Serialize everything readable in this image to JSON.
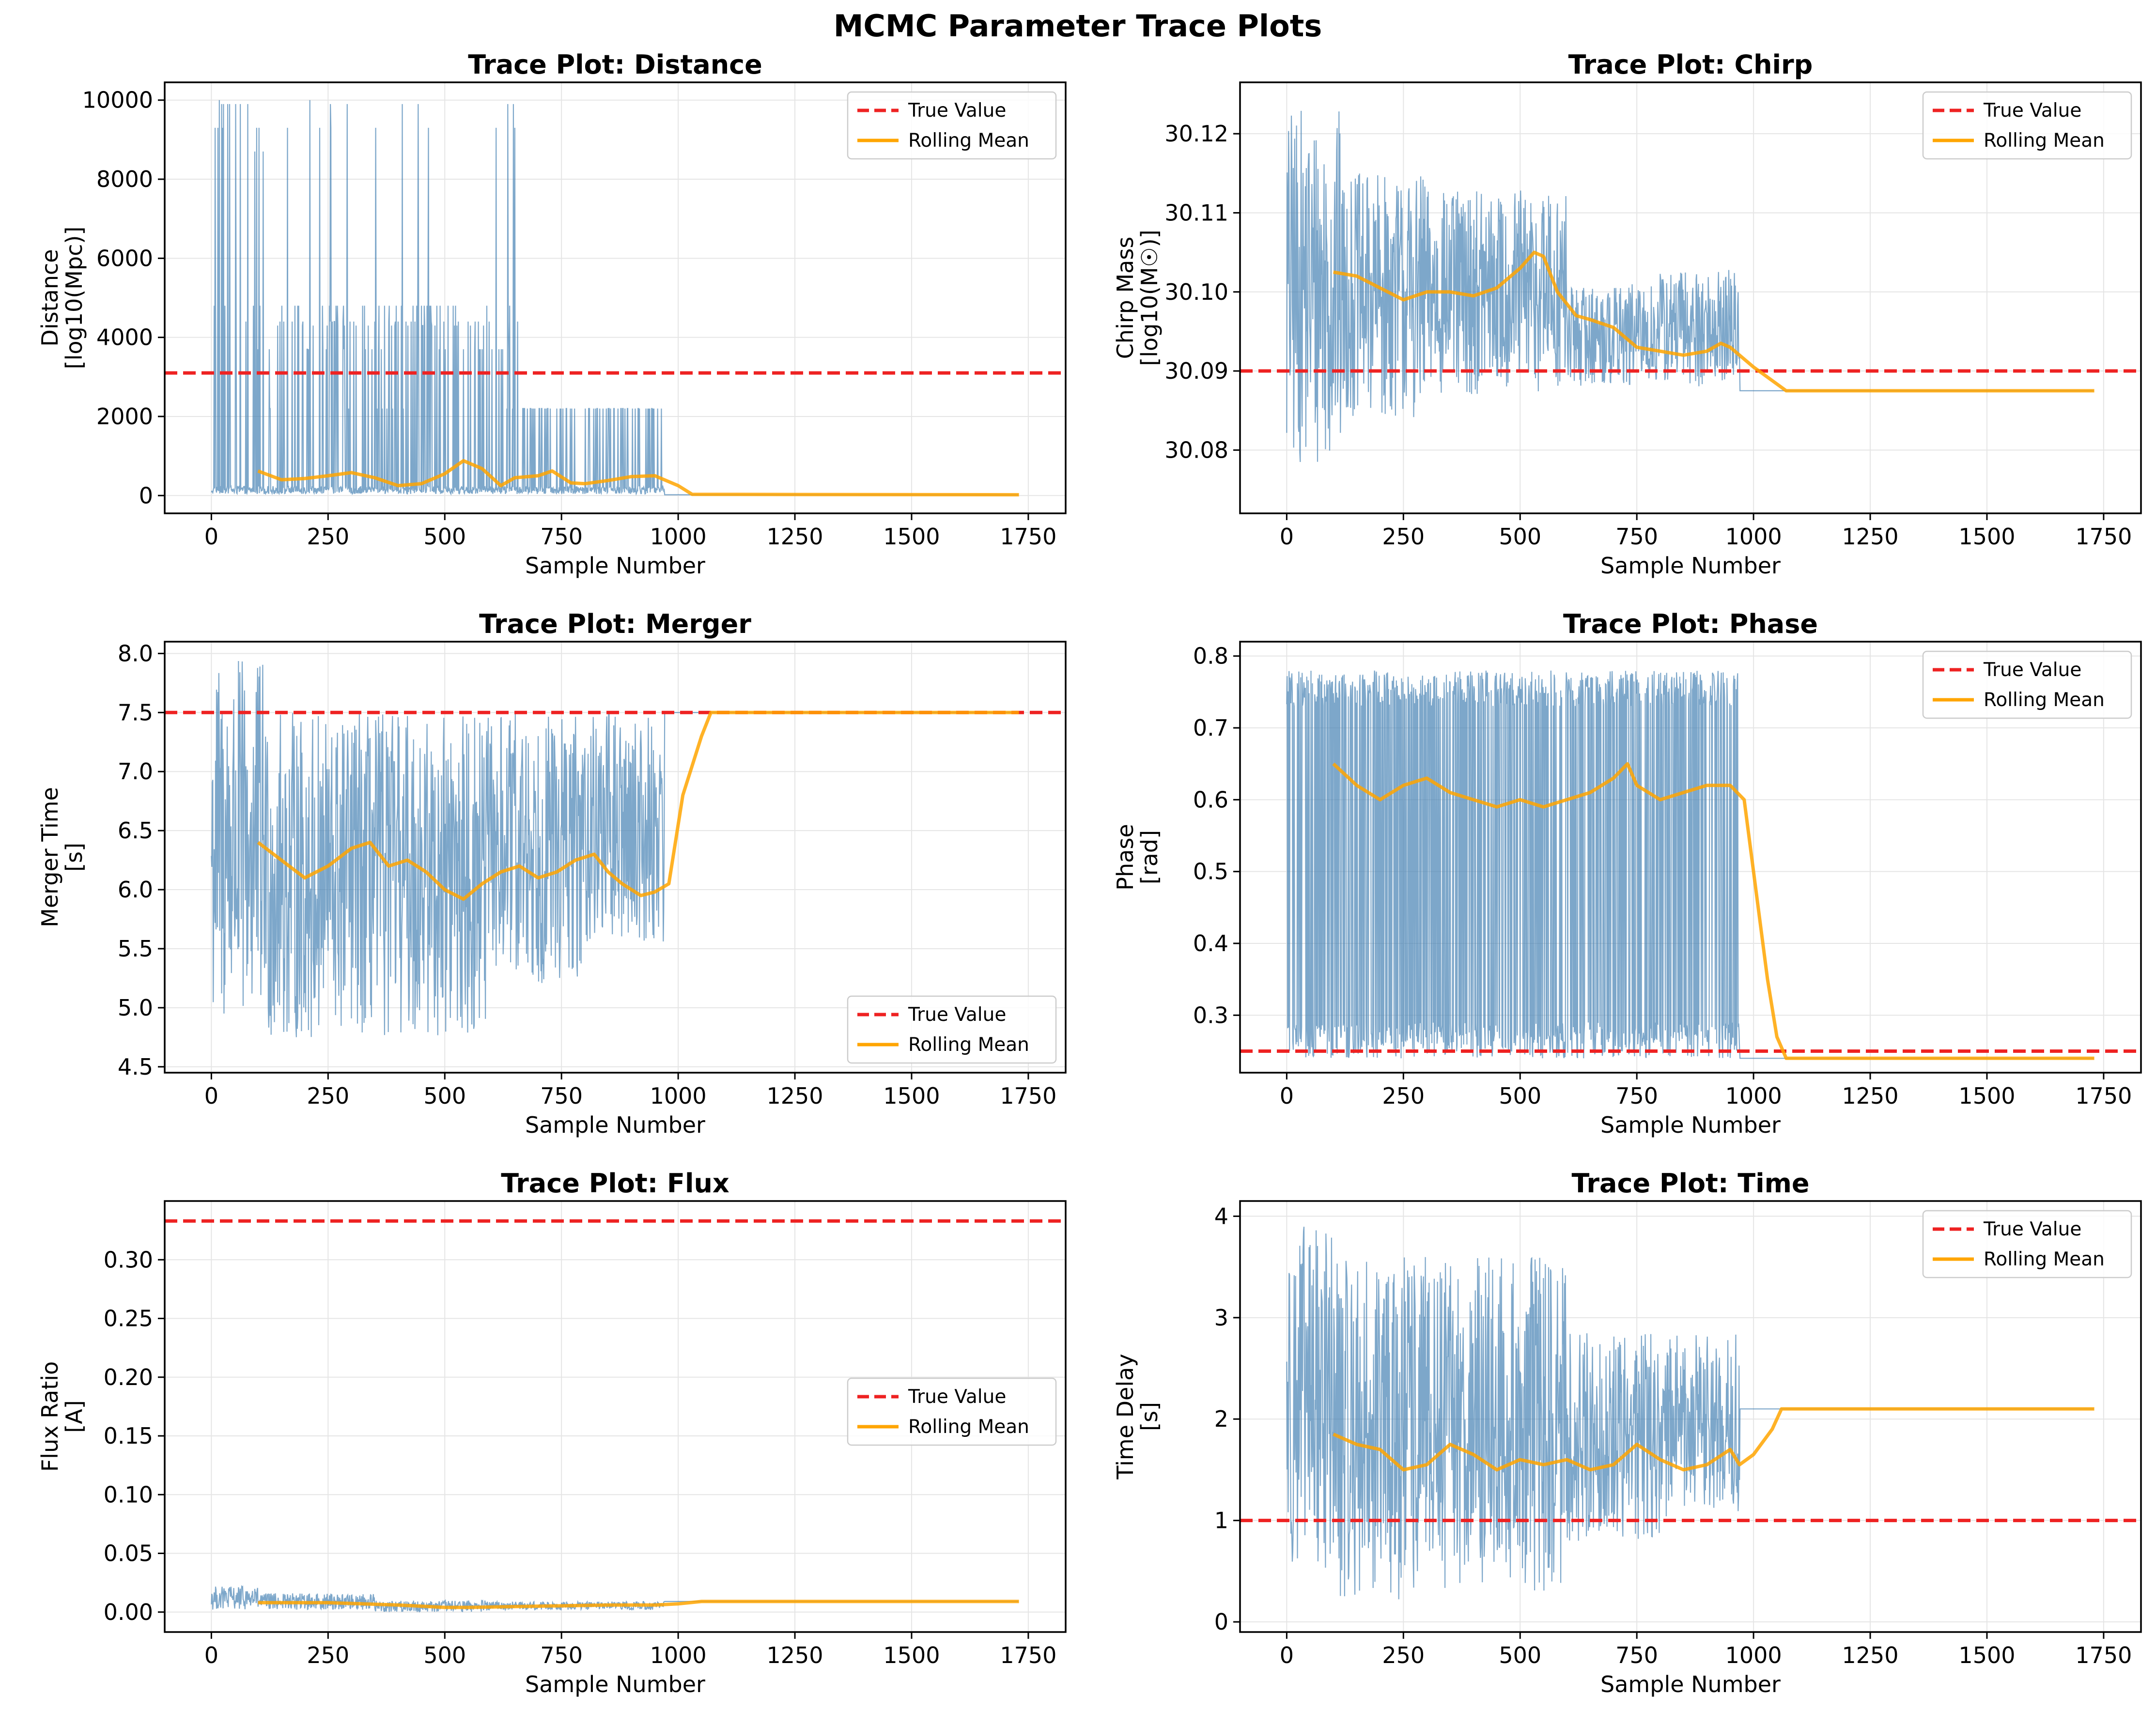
{
  "figure_title": "MCMC Parameter Trace Plots",
  "colors": {
    "trace": "#4682b4",
    "true_value": "#ee2222",
    "rolling_mean": "#ffa500",
    "grid": "#e5e5e5"
  },
  "chart_data": [
    {
      "type": "line",
      "title": "Trace Plot: Distance",
      "xlabel": "Sample Number",
      "ylabel": [
        "Distance",
        "[log10(Mpc)]"
      ],
      "xlim": [
        -100,
        1830
      ],
      "ylim": [
        -450,
        10450
      ],
      "xticks": [
        0,
        250,
        500,
        750,
        1000,
        1250,
        1500,
        1750
      ],
      "yticks": [
        0,
        2000,
        4000,
        6000,
        8000,
        10000
      ],
      "ytick_labels": [
        "0",
        "2000",
        "4000",
        "6000",
        "8000",
        "10000"
      ],
      "true_value": 3100,
      "legend": {
        "entries": [
          "True Value",
          "Rolling Mean"
        ],
        "placement": "upper-right"
      },
      "trace": {
        "name": "",
        "n": 1730,
        "stop": 970,
        "base": 40,
        "noise": [
          0,
          200
        ],
        "spike_prob": 0.22,
        "spike_levels": [
          3700,
          4300,
          4400,
          4800,
          2200,
          8700,
          9300,
          10000,
          9900
        ],
        "final": 20
      },
      "rolling_mean": {
        "x": [
          100,
          150,
          200,
          250,
          300,
          350,
          400,
          450,
          500,
          540,
          580,
          620,
          650,
          700,
          730,
          770,
          800,
          850,
          900,
          950,
          1000,
          1030,
          1730
        ],
        "y": [
          620,
          400,
          430,
          500,
          580,
          450,
          250,
          300,
          550,
          880,
          680,
          250,
          450,
          500,
          620,
          320,
          300,
          380,
          480,
          500,
          250,
          30,
          20
        ]
      }
    },
    {
      "type": "line",
      "title": "Trace Plot: Chirp",
      "xlabel": "Sample Number",
      "ylabel": [
        "Chirp Mass",
        "[log10(M☉)]"
      ],
      "xlim": [
        -100,
        1830
      ],
      "ylim": [
        30.072,
        30.1265
      ],
      "xticks": [
        0,
        250,
        500,
        750,
        1000,
        1250,
        1500,
        1750
      ],
      "yticks": [
        30.08,
        30.09,
        30.1,
        30.11,
        30.12
      ],
      "ytick_labels": [
        "30.08",
        "30.09",
        "30.10",
        "30.11",
        "30.12"
      ],
      "true_value": 30.09,
      "legend": {
        "entries": [
          "True Value",
          "Rolling Mean"
        ],
        "placement": "upper-right"
      },
      "trace": {
        "name": "",
        "n": 1730,
        "stop": 970,
        "segments": [
          [
            0,
            120,
            30.078,
            30.123
          ],
          [
            120,
            300,
            30.084,
            30.115
          ],
          [
            300,
            600,
            30.087,
            30.113
          ],
          [
            600,
            800,
            30.088,
            30.101
          ],
          [
            800,
            970,
            30.088,
            30.103
          ]
        ],
        "final": 30.0875
      },
      "rolling_mean": {
        "x": [
          100,
          150,
          200,
          250,
          300,
          350,
          400,
          450,
          500,
          530,
          550,
          580,
          620,
          650,
          700,
          750,
          800,
          850,
          900,
          930,
          950,
          1000,
          1070,
          1730
        ],
        "y": [
          30.1025,
          30.102,
          30.1005,
          30.099,
          30.1,
          30.1,
          30.0995,
          30.1005,
          30.103,
          30.105,
          30.1045,
          30.1,
          30.097,
          30.0965,
          30.0955,
          30.093,
          30.0925,
          30.092,
          30.0925,
          30.0935,
          30.093,
          30.0905,
          30.0875,
          30.0875
        ]
      }
    },
    {
      "type": "line",
      "title": "Trace Plot: Merger",
      "xlabel": "Sample Number",
      "ylabel": [
        "Merger Time",
        "[s]"
      ],
      "xlim": [
        -100,
        1830
      ],
      "ylim": [
        4.45,
        8.1
      ],
      "xticks": [
        0,
        250,
        500,
        750,
        1000,
        1250,
        1500,
        1750
      ],
      "yticks": [
        4.5,
        5.0,
        5.5,
        6.0,
        6.5,
        7.0,
        7.5,
        8.0
      ],
      "ytick_labels": [
        "4.5",
        "5.0",
        "5.5",
        "6.0",
        "6.5",
        "7.0",
        "7.5",
        "8.0"
      ],
      "true_value": 7.5,
      "legend": {
        "entries": [
          "True Value",
          "Rolling Mean"
        ],
        "placement": "lower-right"
      },
      "trace": {
        "name": "",
        "n": 1730,
        "stop": 970,
        "segments": [
          [
            0,
            120,
            4.8,
            7.95
          ],
          [
            120,
            300,
            4.7,
            7.5
          ],
          [
            300,
            600,
            4.75,
            7.5
          ],
          [
            600,
            800,
            5.2,
            7.5
          ],
          [
            800,
            970,
            5.55,
            7.5
          ]
        ],
        "final": 7.5
      },
      "rolling_mean": {
        "x": [
          100,
          150,
          200,
          250,
          300,
          340,
          380,
          420,
          460,
          500,
          540,
          580,
          620,
          660,
          700,
          740,
          780,
          820,
          850,
          880,
          920,
          950,
          980,
          1010,
          1050,
          1070,
          1730
        ],
        "y": [
          6.4,
          6.25,
          6.1,
          6.2,
          6.35,
          6.4,
          6.2,
          6.25,
          6.15,
          6.0,
          5.92,
          6.05,
          6.15,
          6.2,
          6.1,
          6.15,
          6.25,
          6.3,
          6.15,
          6.05,
          5.95,
          5.98,
          6.05,
          6.8,
          7.3,
          7.5,
          7.5
        ]
      }
    },
    {
      "type": "line",
      "title": "Trace Plot: Phase",
      "xlabel": "Sample Number",
      "ylabel": [
        "Phase",
        "[rad]"
      ],
      "xlim": [
        -100,
        1830
      ],
      "ylim": [
        0.22,
        0.82
      ],
      "xticks": [
        0,
        250,
        500,
        750,
        1000,
        1250,
        1500,
        1750
      ],
      "yticks": [
        0.3,
        0.4,
        0.5,
        0.6,
        0.7,
        0.8
      ],
      "ytick_labels": [
        "0.3",
        "0.4",
        "0.5",
        "0.6",
        "0.7",
        "0.8"
      ],
      "true_value": 0.25,
      "legend": {
        "entries": [
          "True Value",
          "Rolling Mean"
        ],
        "placement": "upper-right"
      },
      "trace": {
        "name": "",
        "n": 1730,
        "stop": 970,
        "bimodal": [
          0.24,
          0.29,
          0.73,
          0.78
        ],
        "final": 0.24
      },
      "rolling_mean": {
        "x": [
          100,
          150,
          200,
          250,
          300,
          350,
          400,
          450,
          500,
          550,
          600,
          650,
          700,
          730,
          750,
          800,
          850,
          900,
          950,
          980,
          1000,
          1030,
          1050,
          1070,
          1730
        ],
        "y": [
          0.65,
          0.62,
          0.6,
          0.62,
          0.63,
          0.61,
          0.6,
          0.59,
          0.6,
          0.59,
          0.6,
          0.61,
          0.63,
          0.65,
          0.62,
          0.6,
          0.61,
          0.62,
          0.62,
          0.6,
          0.5,
          0.35,
          0.27,
          0.24,
          0.24
        ]
      }
    },
    {
      "type": "line",
      "title": "Trace Plot: Flux",
      "xlabel": "Sample Number",
      "ylabel": [
        "Flux Ratio",
        "[A]"
      ],
      "xlim": [
        -100,
        1830
      ],
      "ylim": [
        -0.017,
        0.35
      ],
      "xticks": [
        0,
        250,
        500,
        750,
        1000,
        1250,
        1500,
        1750
      ],
      "yticks": [
        0.0,
        0.05,
        0.1,
        0.15,
        0.2,
        0.25,
        0.3
      ],
      "ytick_labels": [
        "0.00",
        "0.05",
        "0.10",
        "0.15",
        "0.20",
        "0.25",
        "0.30"
      ],
      "true_value": 0.333,
      "legend": {
        "entries": [
          "True Value",
          "Rolling Mean"
        ],
        "placement": "center-right"
      },
      "trace": {
        "name": "",
        "n": 1730,
        "stop": 970,
        "segments": [
          [
            0,
            100,
            0.002,
            0.022
          ],
          [
            100,
            350,
            0.002,
            0.016
          ],
          [
            350,
            600,
            0.0,
            0.01
          ],
          [
            600,
            970,
            0.002,
            0.009
          ]
        ],
        "final": 0.009
      },
      "rolling_mean": {
        "x": [
          100,
          250,
          400,
          500,
          550,
          700,
          850,
          950,
          1000,
          1050,
          1730
        ],
        "y": [
          0.008,
          0.008,
          0.006,
          0.004,
          0.004,
          0.005,
          0.006,
          0.006,
          0.007,
          0.009,
          0.009
        ]
      }
    },
    {
      "type": "line",
      "title": "Trace Plot: Time",
      "xlabel": "Sample Number",
      "ylabel": [
        "Time Delay",
        "[s]"
      ],
      "xlim": [
        -100,
        1830
      ],
      "ylim": [
        -0.1,
        4.15
      ],
      "xticks": [
        0,
        250,
        500,
        750,
        1000,
        1250,
        1500,
        1750
      ],
      "yticks": [
        0,
        1,
        2,
        3,
        4
      ],
      "ytick_labels": [
        "0",
        "1",
        "2",
        "3",
        "4"
      ],
      "true_value": 1.0,
      "legend": {
        "entries": [
          "True Value",
          "Rolling Mean"
        ],
        "placement": "upper-right"
      },
      "trace": {
        "name": "",
        "n": 1730,
        "stop": 970,
        "segments": [
          [
            0,
            100,
            0.5,
            3.9
          ],
          [
            100,
            300,
            0.2,
            3.6
          ],
          [
            300,
            600,
            0.3,
            3.6
          ],
          [
            600,
            800,
            0.8,
            2.85
          ],
          [
            800,
            970,
            1.0,
            2.85
          ]
        ],
        "final": 2.1
      },
      "rolling_mean": {
        "x": [
          100,
          150,
          200,
          250,
          300,
          350,
          400,
          450,
          500,
          550,
          600,
          650,
          700,
          750,
          800,
          850,
          900,
          950,
          970,
          1000,
          1040,
          1060,
          1730
        ],
        "y": [
          1.85,
          1.75,
          1.7,
          1.5,
          1.55,
          1.75,
          1.65,
          1.5,
          1.6,
          1.55,
          1.6,
          1.5,
          1.55,
          1.75,
          1.6,
          1.5,
          1.55,
          1.7,
          1.55,
          1.65,
          1.9,
          2.1,
          2.1
        ]
      }
    }
  ]
}
